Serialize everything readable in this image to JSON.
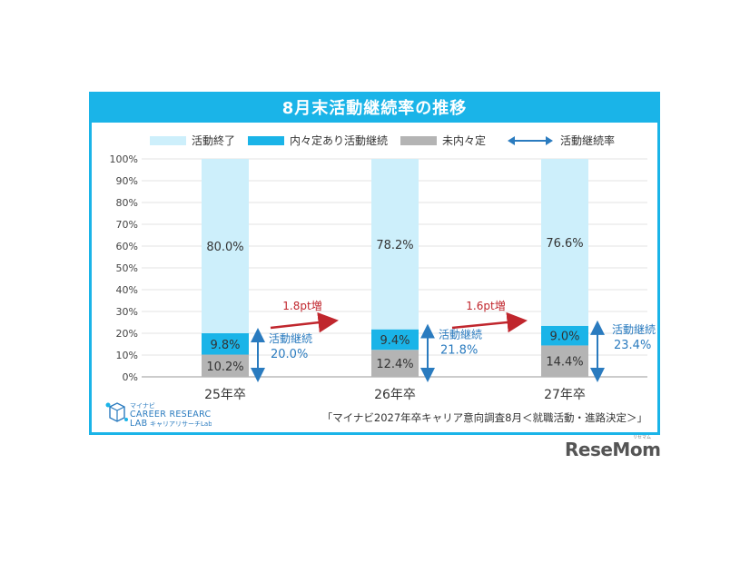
{
  "title": "8月末活動継続率の推移",
  "legend": [
    {
      "label": "活動終了",
      "color": "#cdeffb"
    },
    {
      "label": "内々定あり活動継続",
      "color": "#1ab4e8"
    },
    {
      "label": "未内々定",
      "color": "#b4b4b4"
    },
    {
      "label": "活動継続率",
      "color": "#2a7bbf",
      "icon": "double-arrow-icon"
    }
  ],
  "chart_data": {
    "type": "bar",
    "stacked": true,
    "title": "8月末活動継続率の推移",
    "categories": [
      "25年卒",
      "26年卒",
      "27年卒"
    ],
    "ylim": [
      0,
      100
    ],
    "yticks": [
      "0%",
      "10%",
      "20%",
      "30%",
      "40%",
      "50%",
      "60%",
      "70%",
      "80%",
      "90%",
      "100%"
    ],
    "series": [
      {
        "name": "未内々定",
        "values": [
          10.2,
          12.4,
          14.4
        ],
        "labels": [
          "10.2%",
          "12.4%",
          "14.4%"
        ],
        "color": "#b4b4b4"
      },
      {
        "name": "内々定あり活動継続",
        "values": [
          9.8,
          9.4,
          9.0
        ],
        "labels": [
          "9.8%",
          "9.4%",
          "9.0%"
        ],
        "color": "#1ab4e8"
      },
      {
        "name": "活動終了",
        "values": [
          80.0,
          78.2,
          76.6
        ],
        "labels": [
          "80.0%",
          "78.2%",
          "76.6%"
        ],
        "color": "#cdeffb"
      }
    ],
    "continuation_rate": {
      "label": "活動継続",
      "values": [
        20.0,
        21.8,
        23.4
      ],
      "labels": [
        "20.0%",
        "21.8%",
        "23.4%"
      ]
    },
    "increases": [
      "1.8pt増",
      "1.6pt増"
    ],
    "legend_position": "top",
    "grid": true
  },
  "source": "「マイナビ2027年卒キャリア意向調査8月＜就職活動・進路決定＞」",
  "logo": {
    "small": "マイナビ",
    "main1": "CAREER RESEARCH",
    "main2": "LAB",
    "sub": "キャリアリサーチLab"
  },
  "watermark": {
    "brand": "ReseMom",
    "ruby": "リセマム"
  }
}
